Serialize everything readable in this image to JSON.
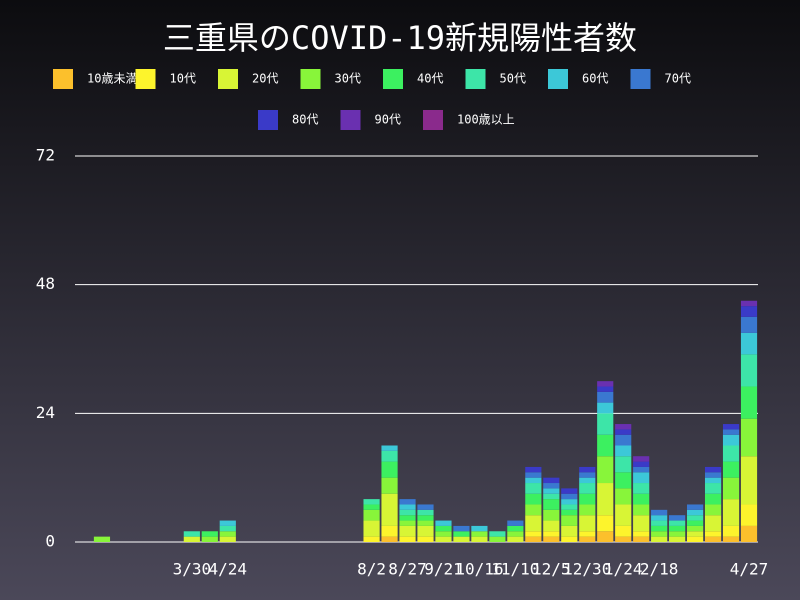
{
  "chart_data": {
    "type": "stacked_bar",
    "title": "三重県のCOVID-19新規陽性者数",
    "categories": [
      null,
      null,
      null,
      null,
      null,
      null,
      "3/30",
      null,
      "4/24",
      null,
      null,
      null,
      null,
      null,
      null,
      null,
      "8/2",
      null,
      "8/27",
      null,
      "9/21",
      null,
      "10/16",
      null,
      "11/10",
      null,
      "12/5",
      null,
      "12/30",
      null,
      "1/24",
      null,
      "2/18",
      null,
      null,
      null,
      null,
      "4/27"
    ],
    "series": [
      {
        "name": "10歳未満",
        "color": "#fcc02c",
        "values": [
          0,
          0,
          0,
          0,
          0,
          0,
          0,
          0,
          0,
          0,
          0,
          0,
          0,
          0,
          0,
          0,
          0,
          1,
          0,
          0,
          0,
          0,
          0,
          0,
          0,
          1,
          1,
          0,
          1,
          2,
          1,
          1,
          0,
          0,
          0,
          1,
          1,
          3
        ]
      },
      {
        "name": "10代",
        "color": "#fdf42c",
        "values": [
          0,
          0,
          0,
          0,
          0,
          0,
          0,
          0,
          0,
          0,
          0,
          0,
          0,
          0,
          0,
          0,
          1,
          2,
          1,
          1,
          0,
          0,
          0,
          0,
          0,
          1,
          1,
          1,
          1,
          3,
          2,
          1,
          0,
          0,
          1,
          1,
          2,
          4
        ]
      },
      {
        "name": "20代",
        "color": "#d8f535",
        "values": [
          0,
          0,
          0,
          0,
          0,
          0,
          1,
          0,
          1,
          0,
          0,
          0,
          0,
          0,
          0,
          0,
          3,
          6,
          2,
          2,
          1,
          1,
          1,
          0,
          1,
          3,
          2,
          2,
          3,
          6,
          4,
          3,
          1,
          1,
          1,
          3,
          5,
          9
        ]
      },
      {
        "name": "30代",
        "color": "#88f53a",
        "values": [
          0,
          1,
          0,
          0,
          0,
          0,
          0,
          1,
          1,
          0,
          0,
          0,
          0,
          0,
          0,
          0,
          2,
          3,
          1,
          1,
          1,
          0,
          1,
          1,
          1,
          2,
          2,
          2,
          2,
          5,
          3,
          2,
          1,
          1,
          1,
          2,
          4,
          7
        ]
      },
      {
        "name": "40代",
        "color": "#3cf060",
        "values": [
          0,
          0,
          0,
          0,
          0,
          0,
          0,
          1,
          0,
          0,
          0,
          0,
          0,
          0,
          0,
          0,
          1,
          3,
          1,
          1,
          1,
          1,
          0,
          0,
          1,
          2,
          2,
          1,
          2,
          4,
          3,
          2,
          1,
          1,
          1,
          2,
          3,
          6
        ]
      },
      {
        "name": "50代",
        "color": "#3de5a8",
        "values": [
          0,
          0,
          0,
          0,
          0,
          0,
          1,
          0,
          1,
          0,
          0,
          0,
          0,
          0,
          0,
          0,
          1,
          2,
          1,
          1,
          0,
          0,
          0,
          1,
          0,
          2,
          1,
          1,
          2,
          4,
          3,
          2,
          1,
          1,
          1,
          2,
          3,
          6
        ]
      },
      {
        "name": "60代",
        "color": "#3cc8d8",
        "values": [
          0,
          0,
          0,
          0,
          0,
          0,
          0,
          0,
          1,
          0,
          0,
          0,
          0,
          0,
          0,
          0,
          0,
          1,
          1,
          0,
          1,
          0,
          1,
          0,
          0,
          1,
          1,
          1,
          1,
          2,
          2,
          2,
          1,
          0,
          1,
          1,
          2,
          4
        ]
      },
      {
        "name": "70代",
        "color": "#3a78d0",
        "values": [
          0,
          0,
          0,
          0,
          0,
          0,
          0,
          0,
          0,
          0,
          0,
          0,
          0,
          0,
          0,
          0,
          0,
          0,
          1,
          1,
          0,
          1,
          0,
          0,
          1,
          1,
          1,
          1,
          1,
          2,
          2,
          1,
          1,
          1,
          1,
          1,
          1,
          3
        ]
      },
      {
        "name": "80代",
        "color": "#3a3ac8",
        "values": [
          0,
          0,
          0,
          0,
          0,
          0,
          0,
          0,
          0,
          0,
          0,
          0,
          0,
          0,
          0,
          0,
          0,
          0,
          0,
          0,
          0,
          0,
          0,
          0,
          0,
          1,
          1,
          1,
          1,
          1,
          1,
          1,
          0,
          0,
          0,
          1,
          1,
          2
        ]
      },
      {
        "name": "90代",
        "color": "#6a30b0",
        "values": [
          0,
          0,
          0,
          0,
          0,
          0,
          0,
          0,
          0,
          0,
          0,
          0,
          0,
          0,
          0,
          0,
          0,
          0,
          0,
          0,
          0,
          0,
          0,
          0,
          0,
          0,
          0,
          0,
          0,
          1,
          1,
          1,
          0,
          0,
          0,
          0,
          0,
          1
        ]
      },
      {
        "name": "100歳以上",
        "color": "#8a2a8c",
        "values": [
          0,
          0,
          0,
          0,
          0,
          0,
          0,
          0,
          0,
          0,
          0,
          0,
          0,
          0,
          0,
          0,
          0,
          0,
          0,
          0,
          0,
          0,
          0,
          0,
          0,
          0,
          0,
          0,
          0,
          0,
          0,
          0,
          0,
          0,
          0,
          0,
          0,
          0
        ]
      }
    ],
    "ylim": [
      0,
      72
    ],
    "yticks": [
      0,
      24,
      48,
      72
    ],
    "grid": true
  }
}
